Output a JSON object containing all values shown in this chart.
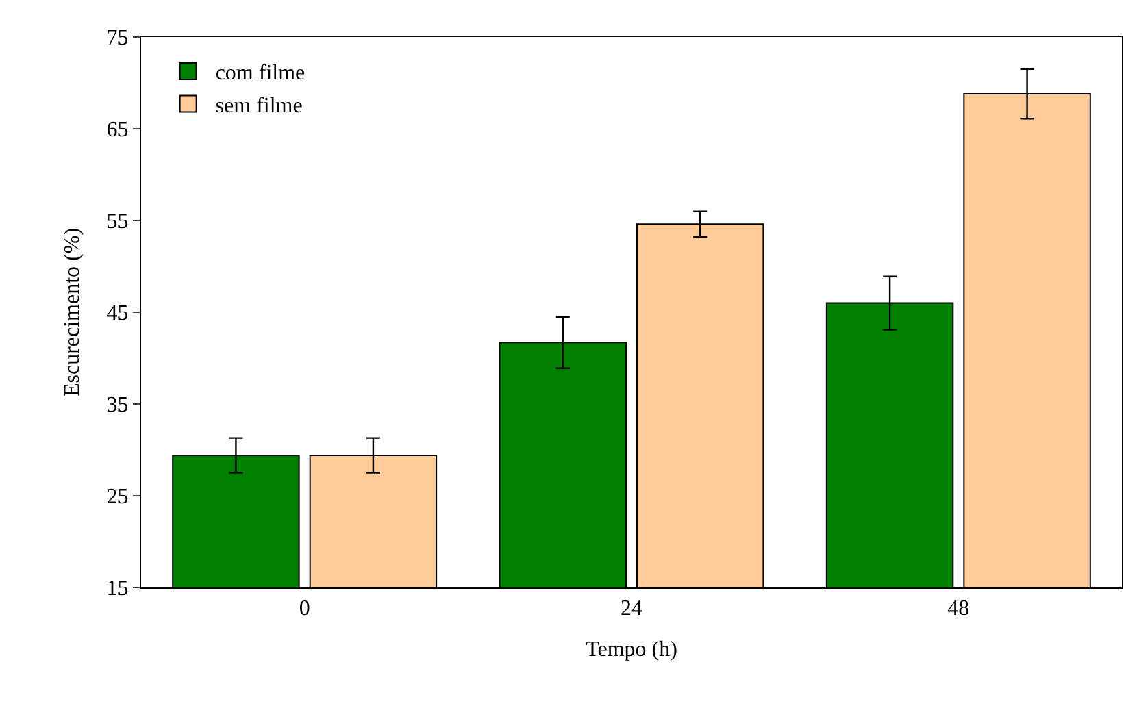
{
  "chart_data": {
    "type": "bar",
    "xlabel": "Tempo (h)",
    "ylabel": "Escurecimento (%)",
    "categories": [
      "0",
      "24",
      "48"
    ],
    "series": [
      {
        "name": "com filme",
        "color": "#008000",
        "values": [
          29.4,
          41.7,
          46.0
        ],
        "errors": [
          1.9,
          2.8,
          2.9
        ]
      },
      {
        "name": "sem filme",
        "color": "#ffcc99",
        "values": [
          29.4,
          54.6,
          68.8
        ],
        "errors": [
          1.9,
          1.4,
          2.7
        ]
      }
    ],
    "ylim": [
      15,
      75
    ],
    "yticks": [
      15,
      25,
      35,
      45,
      55,
      65,
      75
    ],
    "grid": false,
    "legend": "top left"
  }
}
